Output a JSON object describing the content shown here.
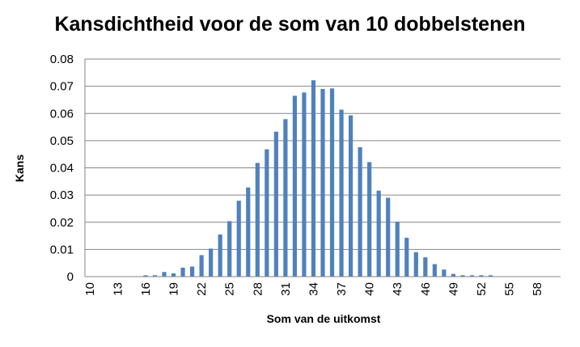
{
  "chart_data": {
    "type": "bar",
    "title": "Kansdichtheid voor de som van 10 dobbelstenen",
    "xlabel": "Som van de uitkomst",
    "ylabel": "Kans",
    "ylim": [
      0,
      0.08
    ],
    "yticks": [
      "0",
      "0.01",
      "0.02",
      "0.03",
      "0.04",
      "0.05",
      "0.06",
      "0.07",
      "0.08"
    ],
    "xtick_labels": [
      "10",
      "13",
      "16",
      "19",
      "22",
      "25",
      "28",
      "31",
      "34",
      "37",
      "40",
      "43",
      "46",
      "49",
      "52",
      "55",
      "58"
    ],
    "grid": true,
    "legend": "none",
    "color": "#4f81bd",
    "categories": [
      10,
      11,
      12,
      13,
      14,
      15,
      16,
      17,
      18,
      19,
      20,
      21,
      22,
      23,
      24,
      25,
      26,
      27,
      28,
      29,
      30,
      31,
      32,
      33,
      34,
      35,
      36,
      37,
      38,
      39,
      40,
      41,
      42,
      43,
      44,
      45,
      46,
      47,
      48,
      49,
      50,
      51,
      52,
      53,
      54,
      55,
      56,
      57,
      58,
      59,
      60
    ],
    "values": [
      0,
      0,
      0,
      0,
      0,
      0,
      0.0005,
      0.0005,
      0.0017,
      0.0012,
      0.0033,
      0.0037,
      0.0079,
      0.0103,
      0.0155,
      0.0204,
      0.0279,
      0.0328,
      0.0418,
      0.0468,
      0.0533,
      0.0579,
      0.0665,
      0.0677,
      0.0722,
      0.069,
      0.0692,
      0.0614,
      0.0593,
      0.0476,
      0.0421,
      0.0316,
      0.029,
      0.0202,
      0.0143,
      0.009,
      0.0071,
      0.0046,
      0.0026,
      0.001,
      0.0005,
      0.0005,
      0.0005,
      0.0005,
      0,
      0,
      0,
      0,
      0,
      0,
      0
    ]
  }
}
